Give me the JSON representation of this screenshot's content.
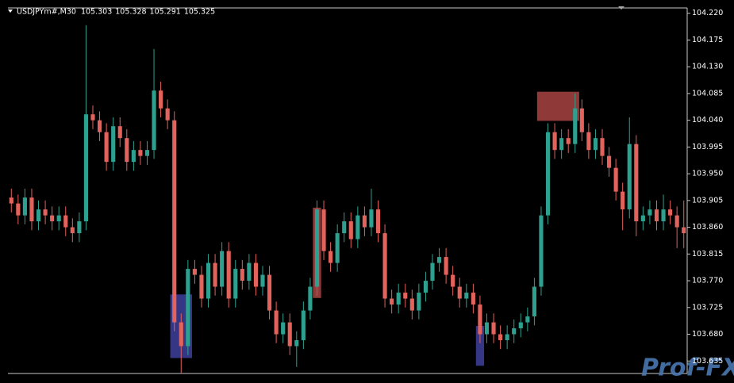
{
  "chart_data": {
    "type": "candlestick",
    "title": "USDJPYm#,M30",
    "quote_labels": [
      "105.303",
      "105.328",
      "105.291",
      "105.325"
    ],
    "watermark": "Prof-FX",
    "up_color": "#2ea08f",
    "down_color": "#e2625c",
    "ylim": [
      103.614,
      104.229
    ],
    "yticks": [
      {
        "value": 104.22,
        "label": "104.220"
      },
      {
        "value": 104.175,
        "label": "104.175"
      },
      {
        "value": 104.13,
        "label": "104.130"
      },
      {
        "value": 104.085,
        "label": "104.085"
      },
      {
        "value": 104.04,
        "label": "104.040"
      },
      {
        "value": 103.995,
        "label": "103.995"
      },
      {
        "value": 103.95,
        "label": "103.950"
      },
      {
        "value": 103.905,
        "label": "103.905"
      },
      {
        "value": 103.86,
        "label": "103.860"
      },
      {
        "value": 103.815,
        "label": "103.815"
      },
      {
        "value": 103.77,
        "label": "103.770"
      },
      {
        "value": 103.725,
        "label": "103.725"
      },
      {
        "value": 103.68,
        "label": "103.680"
      },
      {
        "value": 103.635,
        "label": "103.635"
      }
    ],
    "open": [
      103.91,
      103.9,
      103.88,
      103.91,
      103.87,
      103.89,
      103.88,
      103.87,
      103.88,
      103.86,
      103.85,
      103.87,
      104.05,
      104.04,
      104.02,
      103.97,
      104.03,
      104.01,
      103.97,
      103.99,
      103.98,
      103.99,
      104.09,
      104.06,
      104.04,
      103.7,
      103.66,
      103.79,
      103.78,
      103.74,
      103.8,
      103.76,
      103.82,
      103.74,
      103.79,
      103.77,
      103.8,
      103.76,
      103.78,
      103.72,
      103.68,
      103.7,
      103.66,
      103.67,
      103.72,
      103.76,
      103.89,
      103.82,
      103.8,
      103.85,
      103.87,
      103.84,
      103.88,
      103.86,
      103.89,
      103.85,
      103.74,
      103.73,
      103.75,
      103.74,
      103.72,
      103.75,
      103.77,
      103.8,
      103.81,
      103.78,
      103.76,
      103.74,
      103.75,
      103.73,
      103.68,
      103.7,
      103.68,
      103.67,
      103.68,
      103.69,
      103.7,
      103.71,
      103.76,
      103.88,
      104.02,
      103.99,
      104.01,
      104.0,
      104.06,
      104.02,
      103.99,
      104.01,
      103.98,
      103.96,
      103.92,
      103.89,
      104.0,
      103.87,
      103.88,
      103.89,
      103.87,
      103.89,
      103.88,
      103.86
    ],
    "high": [
      103.925,
      103.915,
      103.925,
      103.925,
      103.905,
      103.905,
      103.895,
      103.895,
      103.895,
      103.875,
      103.885,
      104.2,
      104.065,
      104.055,
      104.035,
      104.045,
      104.045,
      104.025,
      104.005,
      104.005,
      104.005,
      104.16,
      104.105,
      104.075,
      104.055,
      103.715,
      103.805,
      103.805,
      103.795,
      103.815,
      103.815,
      103.835,
      103.835,
      103.805,
      103.805,
      103.815,
      103.815,
      103.795,
      103.795,
      103.735,
      103.715,
      103.715,
      103.685,
      103.735,
      103.775,
      103.905,
      103.905,
      103.835,
      103.865,
      103.885,
      103.885,
      103.895,
      103.895,
      103.925,
      103.905,
      103.865,
      103.755,
      103.765,
      103.765,
      103.755,
      103.765,
      103.785,
      103.815,
      103.825,
      103.825,
      103.795,
      103.775,
      103.765,
      103.765,
      103.745,
      103.715,
      103.715,
      103.695,
      103.695,
      103.705,
      103.715,
      103.725,
      103.775,
      103.895,
      104.035,
      104.035,
      104.025,
      104.025,
      104.085,
      104.075,
      104.035,
      104.025,
      104.025,
      103.995,
      103.975,
      103.935,
      104.045,
      104.015,
      103.895,
      103.905,
      103.905,
      103.915,
      103.905,
      103.895,
      103.905
    ],
    "low": [
      103.885,
      103.865,
      103.865,
      103.855,
      103.855,
      103.865,
      103.855,
      103.855,
      103.845,
      103.835,
      103.835,
      103.855,
      104.025,
      104.005,
      103.955,
      103.955,
      103.995,
      103.955,
      103.955,
      103.965,
      103.965,
      103.975,
      104.045,
      104.025,
      103.685,
      103.615,
      103.645,
      103.765,
      103.725,
      103.725,
      103.745,
      103.745,
      103.725,
      103.725,
      103.755,
      103.755,
      103.745,
      103.745,
      103.705,
      103.665,
      103.665,
      103.645,
      103.625,
      103.655,
      103.705,
      103.745,
      103.805,
      103.785,
      103.785,
      103.835,
      103.825,
      103.825,
      103.845,
      103.845,
      103.835,
      103.725,
      103.715,
      103.715,
      103.725,
      103.705,
      103.705,
      103.735,
      103.755,
      103.785,
      103.765,
      103.745,
      103.725,
      103.725,
      103.715,
      103.665,
      103.665,
      103.665,
      103.655,
      103.655,
      103.665,
      103.675,
      103.685,
      103.695,
      103.745,
      103.865,
      103.975,
      103.975,
      103.985,
      103.985,
      104.005,
      103.975,
      103.975,
      103.965,
      103.945,
      103.905,
      103.855,
      103.875,
      103.845,
      103.855,
      103.865,
      103.855,
      103.855,
      103.865,
      103.825,
      103.825
    ],
    "close": [
      103.9,
      103.88,
      103.91,
      103.87,
      103.89,
      103.88,
      103.87,
      103.88,
      103.86,
      103.85,
      103.87,
      104.05,
      104.04,
      104.02,
      103.97,
      104.03,
      104.01,
      103.97,
      103.99,
      103.98,
      103.99,
      104.09,
      104.06,
      104.04,
      103.7,
      103.66,
      103.79,
      103.78,
      103.74,
      103.8,
      103.76,
      103.82,
      103.74,
      103.79,
      103.77,
      103.8,
      103.76,
      103.78,
      103.72,
      103.68,
      103.7,
      103.66,
      103.67,
      103.72,
      103.76,
      103.89,
      103.82,
      103.8,
      103.85,
      103.87,
      103.84,
      103.88,
      103.86,
      103.89,
      103.85,
      103.74,
      103.73,
      103.75,
      103.74,
      103.72,
      103.75,
      103.77,
      103.8,
      103.81,
      103.78,
      103.76,
      103.74,
      103.75,
      103.73,
      103.68,
      103.7,
      103.68,
      103.67,
      103.68,
      103.69,
      103.7,
      103.71,
      103.76,
      103.88,
      104.02,
      103.99,
      104.01,
      104.0,
      104.06,
      104.02,
      103.99,
      104.01,
      103.98,
      103.96,
      103.92,
      103.89,
      104.0,
      103.87,
      103.88,
      103.89,
      103.87,
      103.89,
      103.88,
      103.86,
      103.85
    ],
    "zones": [
      {
        "color": "#3f3f9e",
        "from": 24,
        "to": 26,
        "top": 103.747,
        "bottom": 103.64
      },
      {
        "color": "#a84343",
        "from": 45,
        "to": 45,
        "top": 103.893,
        "bottom": 103.741
      },
      {
        "color": "#3f3f9e",
        "from": 69,
        "to": 69,
        "top": 103.694,
        "bottom": 103.627
      },
      {
        "color": "#a84343",
        "from": 78,
        "to": 83,
        "top": 104.088,
        "bottom": 104.039
      }
    ]
  }
}
